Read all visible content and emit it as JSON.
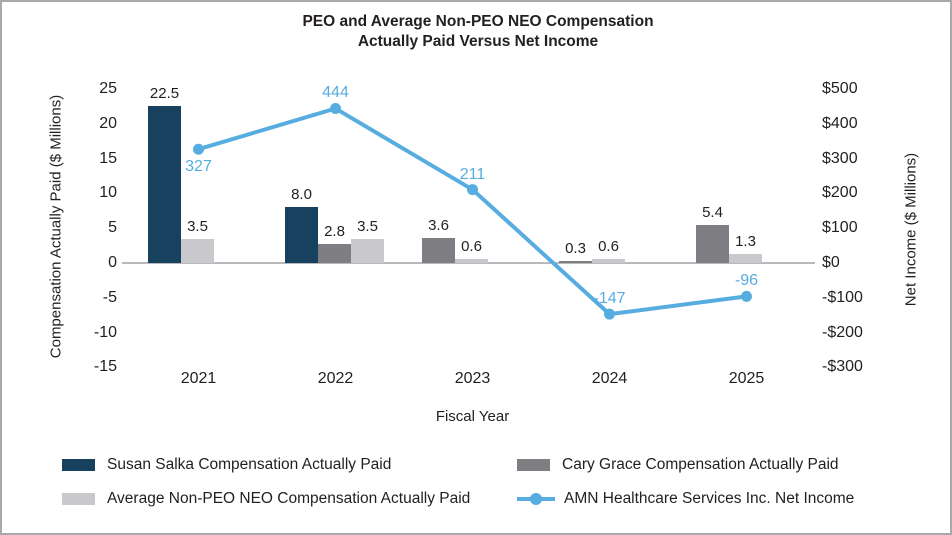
{
  "chart_data": {
    "type": "combo_bar_line",
    "title_line1": "PEO and Average Non-PEO NEO Compensation",
    "title_line2": "Actually Paid Versus Net Income",
    "categories": [
      "2021",
      "2022",
      "2023",
      "2024",
      "2025"
    ],
    "x_axis_label": "Fiscal Year",
    "left_axis": {
      "label": "Compensation Actually Paid ($ Millions)",
      "ticks": [
        25,
        20,
        15,
        10,
        5,
        0,
        -5,
        -10,
        -15
      ],
      "min": -15,
      "max": 25
    },
    "right_axis": {
      "label": "Net Income ($ Millions)",
      "tick_labels": [
        "$500",
        "$400",
        "$300",
        "$200",
        "$100",
        "$0",
        "-$100",
        "-$200",
        "-$300"
      ],
      "tick_values": [
        500,
        400,
        300,
        200,
        100,
        0,
        -100,
        -200,
        -300
      ],
      "min": -300,
      "max": 500
    },
    "bar_series": [
      {
        "name": "Susan Salka Compensation Actually Paid",
        "color": "#17415f",
        "values": [
          22.5,
          8.0,
          null,
          null,
          null
        ]
      },
      {
        "name": "Cary Grace Compensation Actually Paid",
        "color": "#7f7f83",
        "values": [
          null,
          2.8,
          3.6,
          0.3,
          5.4
        ]
      },
      {
        "name": "Average Non-PEO NEO Compensation Actually Paid",
        "color": "#c9c9cd",
        "values": [
          3.5,
          3.5,
          0.6,
          0.6,
          1.3
        ]
      }
    ],
    "line_series": {
      "name": "AMN Healthcare Services Inc. Net Income",
      "color": "#58ade0",
      "axis": "right",
      "values": [
        327,
        444,
        211,
        -147,
        -96
      ]
    },
    "legend": [
      {
        "label": "Susan Salka Compensation Actually Paid",
        "marker": "rect",
        "color": "#17415f"
      },
      {
        "label": "Average Non-PEO NEO Compensation Actually Paid",
        "marker": "rect",
        "color": "#c9c9cd"
      },
      {
        "label": "Cary Grace Compensation Actually Paid",
        "marker": "rect",
        "color": "#7f7f83"
      },
      {
        "label": "AMN Healthcare Services Inc. Net Income",
        "marker": "line-dot",
        "color": "#58ade0"
      }
    ],
    "grid": "off",
    "legend_position": "bottom"
  }
}
